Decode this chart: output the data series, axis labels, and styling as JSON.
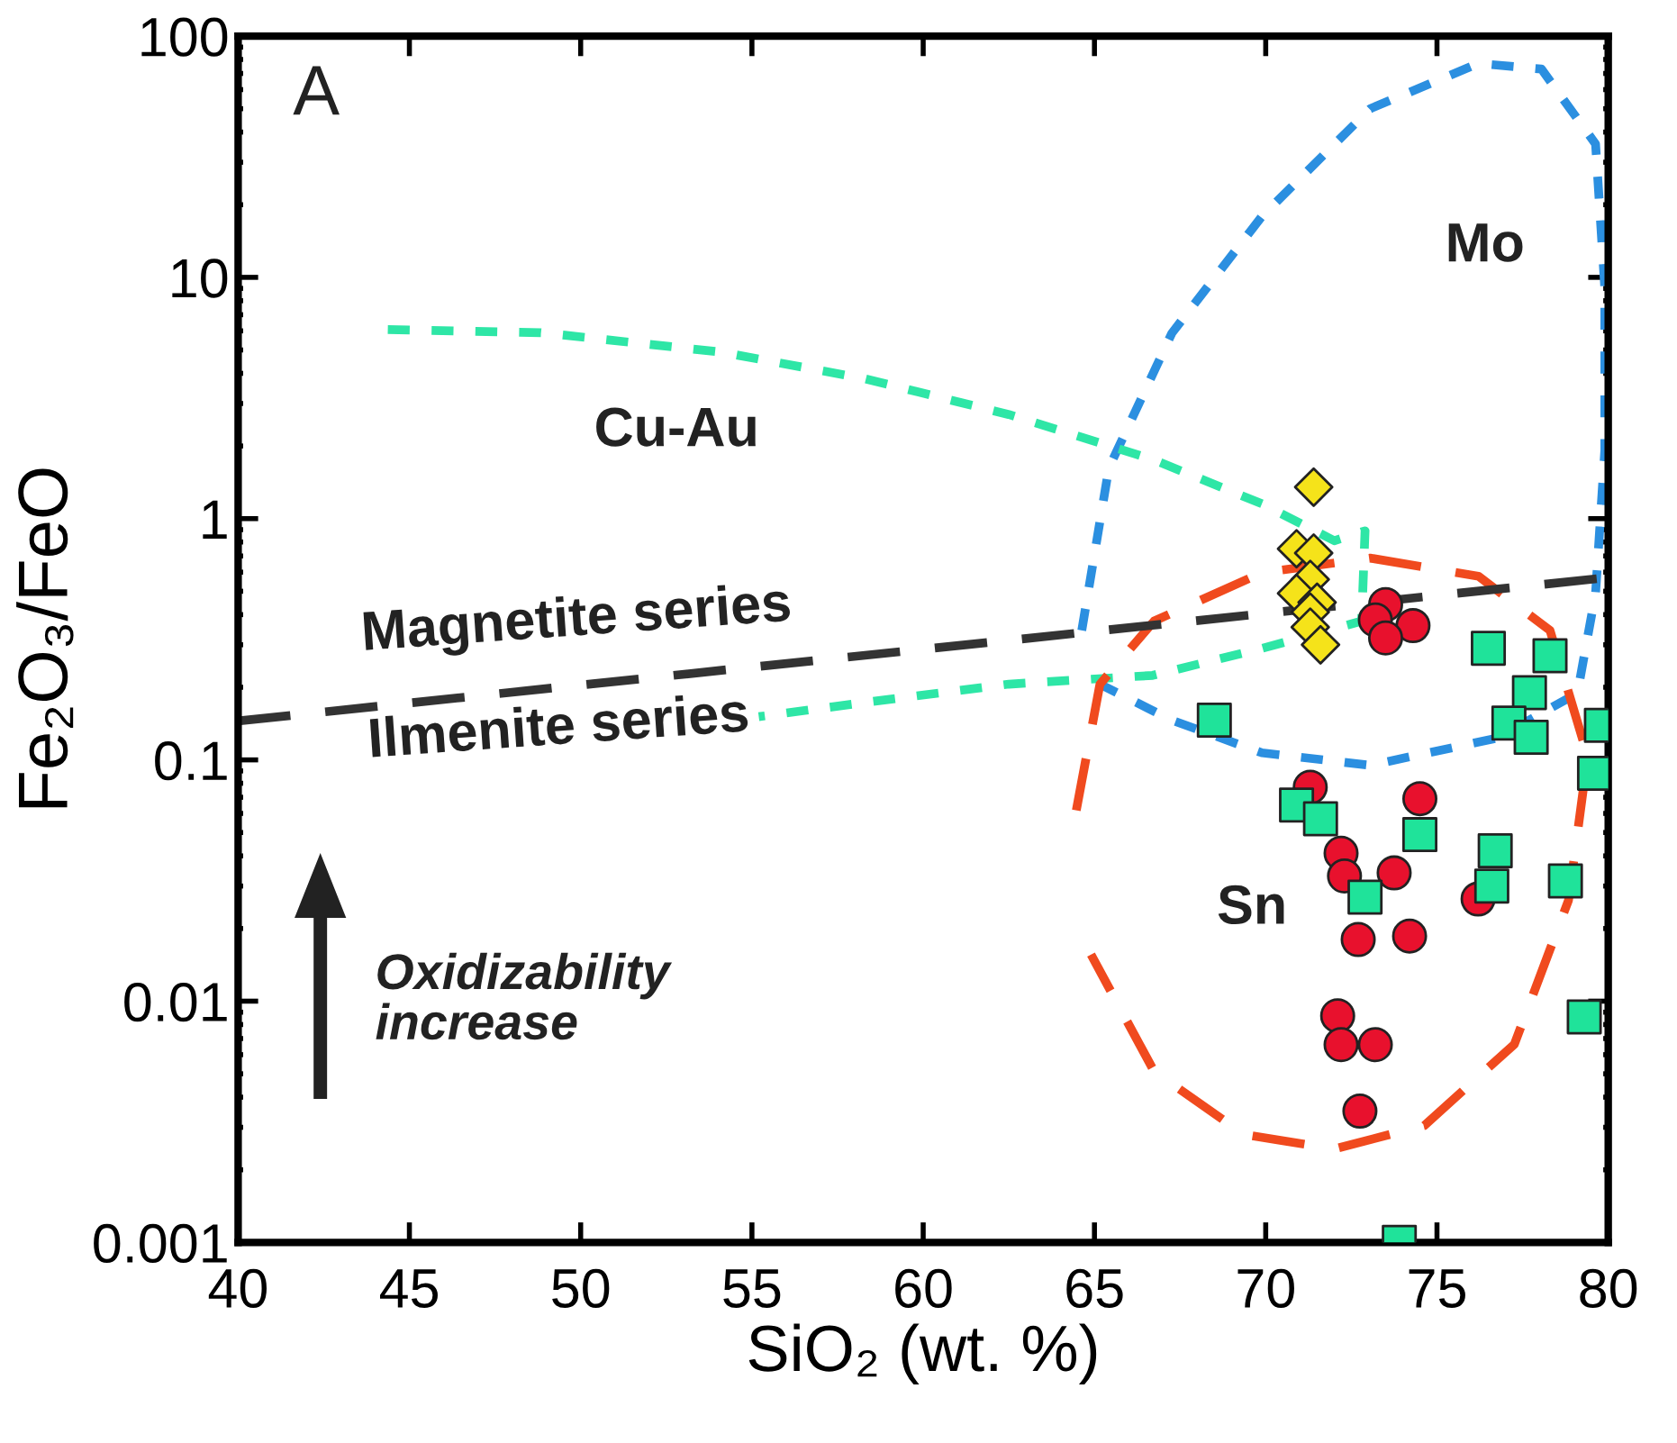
{
  "chart_data": {
    "type": "scatter",
    "xlabel": "SiO₂ (wt. %)",
    "ylabel": "Fe₂O₃/FeO",
    "log": "y",
    "xlim": [
      40,
      80
    ],
    "xticks": [
      40,
      45,
      50,
      55,
      60,
      65,
      70,
      75,
      80
    ],
    "ylim": [
      0.001,
      100
    ],
    "yticks": [
      0.001,
      0.01,
      0.1,
      1,
      10,
      100
    ],
    "grid": false,
    "legend": false,
    "series": [
      {
        "type": "line",
        "color": "#2b8fe0",
        "line_style": "dotted",
        "marker": "none",
        "x": [
          64.63,
          65.42,
          67.26,
          69.89,
          73.05,
          76.21,
          78.05,
          79.63,
          79.9,
          79.9,
          79.63,
          79.1,
          76.74,
          73.05,
          69.89,
          67.26,
          65.16
        ],
        "values": [
          0.344,
          1.62,
          5.87,
          17.9,
          50,
          77,
          73,
          35.7,
          9.0,
          1.92,
          0.49,
          0.189,
          0.123,
          0.095,
          0.107,
          0.146,
          0.206
        ]
      },
      {
        "type": "line",
        "color": "#2ee6a6",
        "line_style": "dotted",
        "marker": "none",
        "x": [
          44.37,
          48.84,
          54.1,
          58.3,
          62.5,
          66.7,
          69.9,
          72.0,
          72.9,
          72.8,
          69.9,
          66.7,
          62.5,
          58.3,
          55.2
        ],
        "values": [
          6.08,
          5.9,
          4.9,
          3.8,
          2.7,
          1.76,
          1.15,
          0.81,
          0.89,
          0.376,
          0.29,
          0.224,
          0.206,
          0.173,
          0.151
        ]
      },
      {
        "type": "line",
        "color": "#f04a1e",
        "line_style": "dashed",
        "marker": "none",
        "x": [
          64.47,
          65.16,
          66.74,
          69.89,
          73.05,
          76.21,
          78.3,
          79.4,
          78.84,
          77.26,
          74.63,
          72.0,
          69.37,
          66.74,
          64.9
        ],
        "values": [
          0.0618,
          0.206,
          0.376,
          0.597,
          0.686,
          0.577,
          0.344,
          0.1035,
          0.0262,
          0.00663,
          0.00305,
          0.00244,
          0.0028,
          0.00512,
          0.0156
        ]
      },
      {
        "type": "line",
        "color": "#333333",
        "line_style": "dashed",
        "marker": "none",
        "x": [
          40,
          80
        ],
        "values": [
          0.145,
          0.57
        ]
      },
      {
        "type": "scatter",
        "color": "#f5e31a",
        "marker": "diamond",
        "x": [
          71.4,
          70.9,
          71.4,
          71.3,
          70.9,
          71.5,
          71.3,
          71.3,
          71.6
        ],
        "values": [
          1.35,
          0.75,
          0.72,
          0.56,
          0.49,
          0.45,
          0.41,
          0.355,
          0.3
        ]
      },
      {
        "type": "scatter",
        "color": "#e8112d",
        "marker": "circle",
        "x": [
          73.5,
          73.2,
          74.3,
          73.5,
          71.3,
          74.5,
          72.2,
          72.3,
          73.75,
          76.2,
          72.7,
          74.2,
          72.1,
          72.2,
          73.2,
          72.75
        ],
        "values": [
          0.44,
          0.38,
          0.36,
          0.32,
          0.077,
          0.069,
          0.041,
          0.033,
          0.034,
          0.0265,
          0.018,
          0.0186,
          0.0087,
          0.0066,
          0.0066,
          0.0035
        ]
      },
      {
        "type": "scatter",
        "color": "#1fe39a",
        "marker": "square",
        "x": [
          76.5,
          78.3,
          77.7,
          77.1,
          77.75,
          79.8,
          79.6,
          68.5,
          70.9,
          71.6,
          74.5,
          76.7,
          76.6,
          72.9,
          78.75,
          79.3,
          73.9
        ],
        "values": [
          0.29,
          0.27,
          0.19,
          0.142,
          0.124,
          0.139,
          0.088,
          0.146,
          0.065,
          0.057,
          0.049,
          0.042,
          0.03,
          0.027,
          0.0315,
          0.0086,
          0.001
        ]
      }
    ],
    "annotations": [
      "A",
      "Oxidizability\nincrease",
      "Mo",
      "Cu-Au",
      "Sn",
      "Magnetite series",
      "Ilmenite series"
    ]
  }
}
